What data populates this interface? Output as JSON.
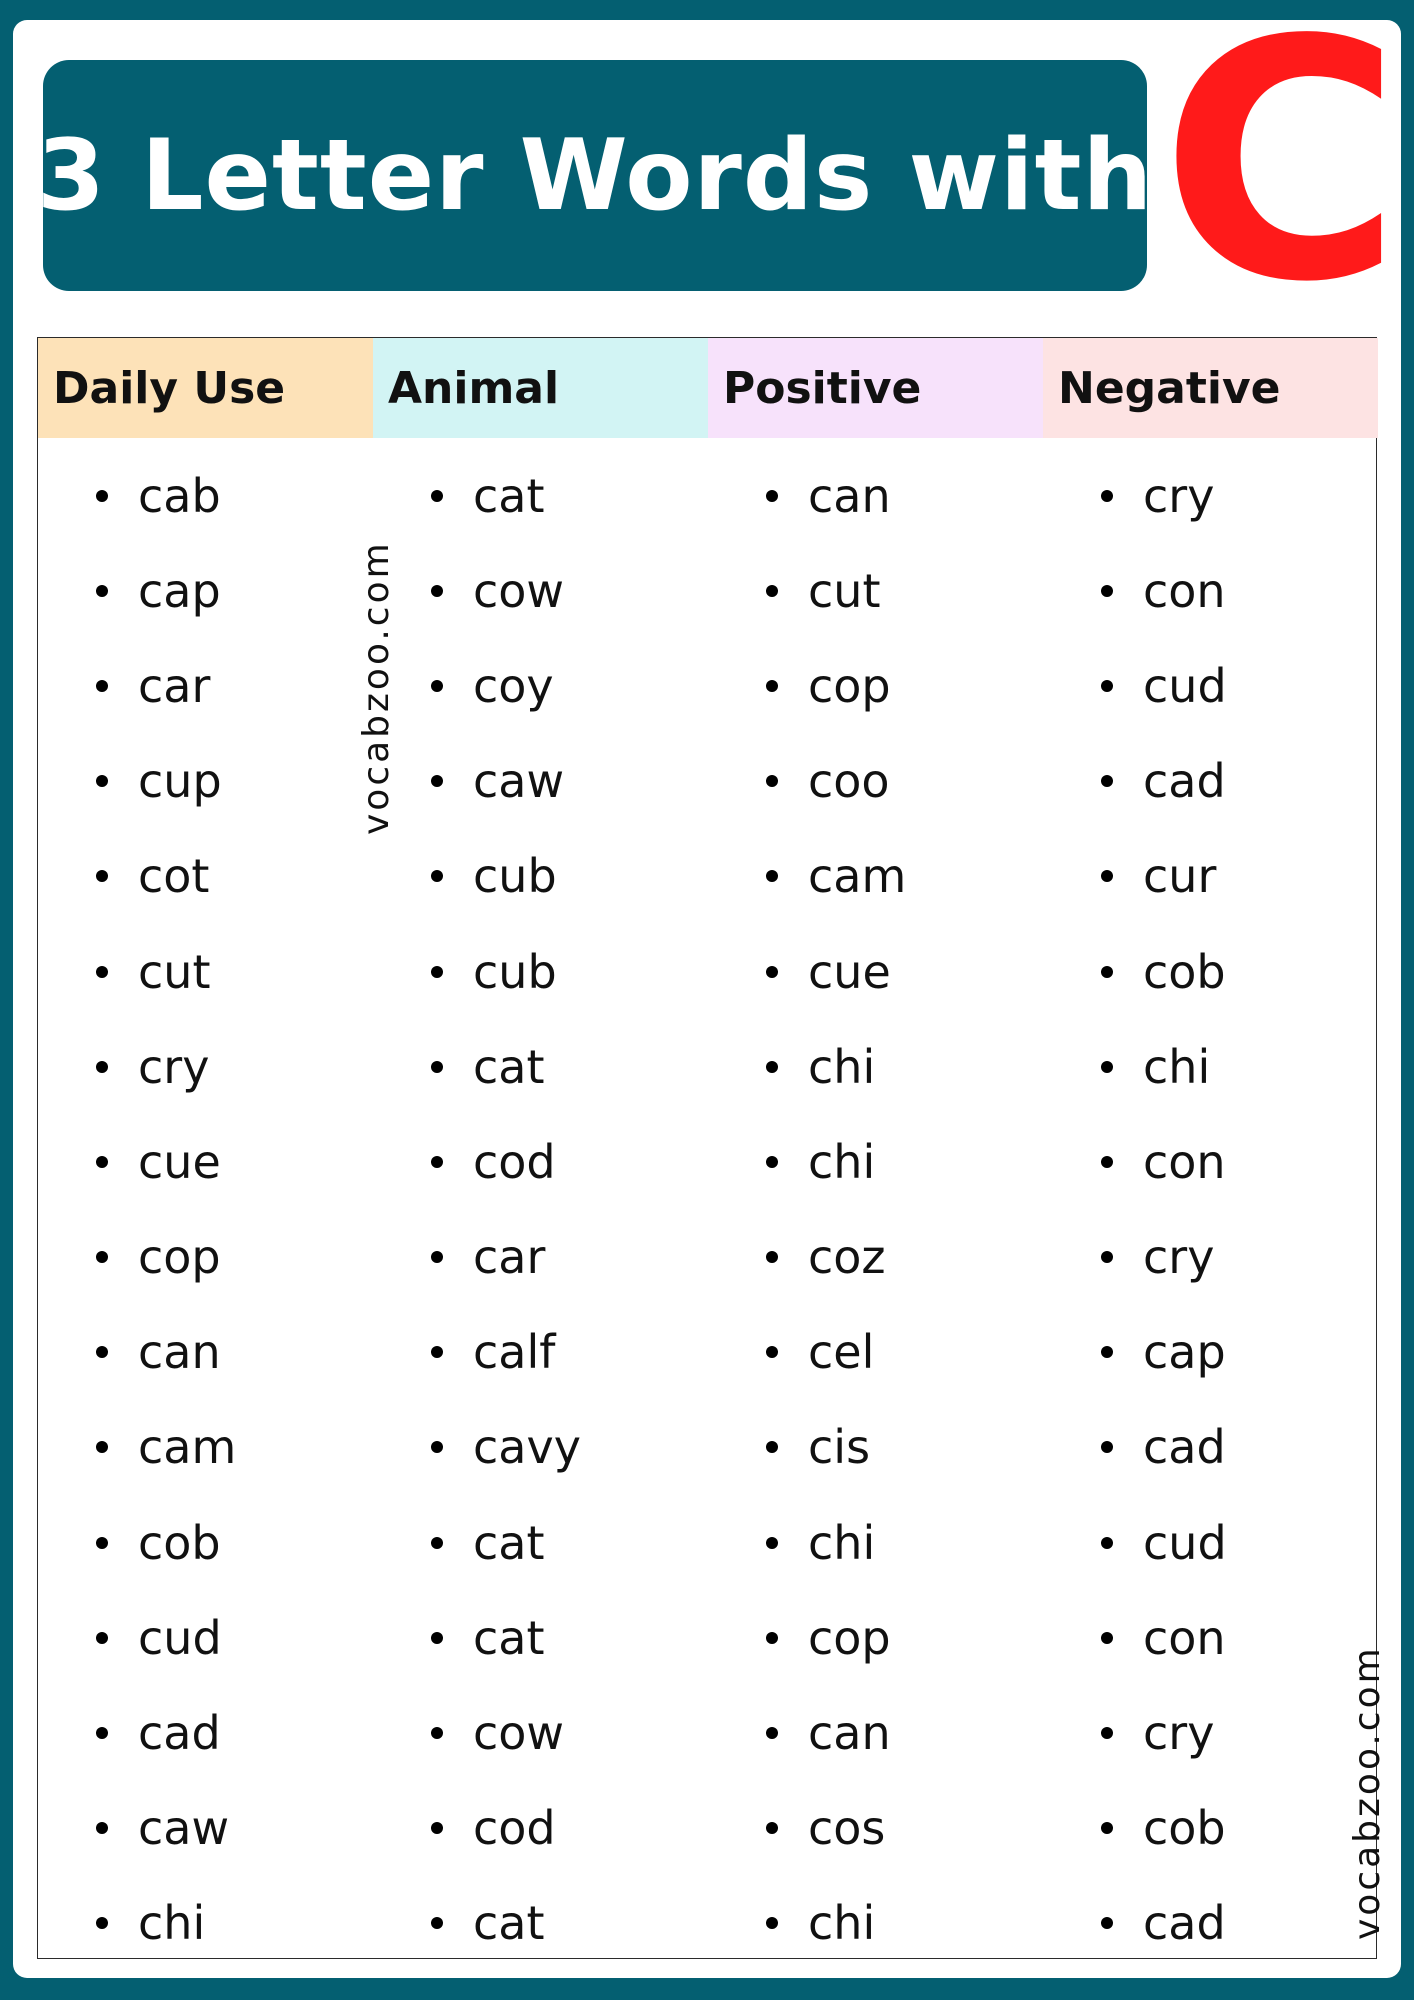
{
  "title": {
    "text": "3 Letter Words with",
    "letter": "C"
  },
  "colors": {
    "background": "#045f71",
    "accent_letter": "#ff1a1a"
  },
  "columns": [
    {
      "header": "Daily Use",
      "header_color": "#fde2b8",
      "words": [
        "cab",
        "cap",
        "car",
        "cup",
        "cot",
        "cut",
        "cry",
        "cue",
        "cop",
        "can",
        "cam",
        "cob",
        "cud",
        "cad",
        "caw",
        "chi"
      ]
    },
    {
      "header": "Animal",
      "header_color": "#d2f4f4",
      "words": [
        "cat",
        "cow",
        "coy",
        "caw",
        "cub",
        "cub",
        "cat",
        "cod",
        "car",
        "calf",
        "cavy",
        "cat",
        "cat",
        "cow",
        "cod",
        "cat"
      ]
    },
    {
      "header": "Positive",
      "header_color": "#f7e2fb",
      "words": [
        "can",
        "cut",
        "cop",
        "coo",
        "cam",
        "cue",
        "chi",
        "chi",
        "coz",
        "cel",
        "cis",
        "chi",
        "cop",
        "can",
        "cos",
        "chi"
      ]
    },
    {
      "header": "Negative",
      "header_color": "#fde3e3",
      "words": [
        "cry",
        "con",
        "cud",
        "cad",
        "cur",
        "cob",
        "chi",
        "con",
        "cry",
        "cap",
        "cad",
        "cud",
        "con",
        "cry",
        "cob",
        "cad"
      ]
    }
  ],
  "watermark": "vocabzoo.com"
}
